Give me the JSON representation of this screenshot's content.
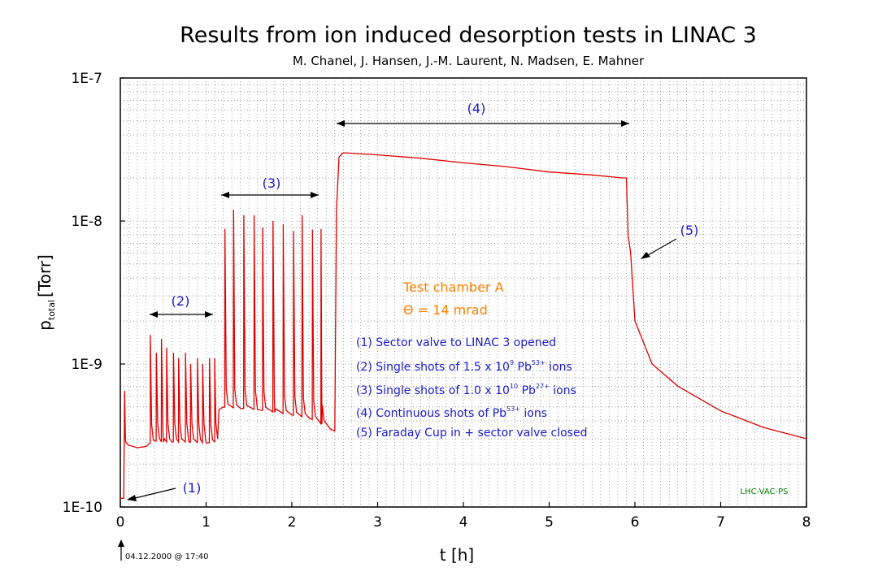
{
  "chart_data": {
    "type": "line",
    "title": "Results from ion induced desorption tests in LINAC 3",
    "subtitle": "M. Chanel, J. Hansen, J.-M. Laurent, N. Madsen, E. Mahner",
    "xlabel": "t [h]",
    "ylabel_main": "p",
    "ylabel_sub": "total",
    "ylabel_unit": "[Torr]",
    "x_scale": "linear",
    "y_scale": "log",
    "xlim": [
      0,
      8
    ],
    "ylim": [
      1e-10,
      1e-07
    ],
    "x_ticks": [
      0,
      1,
      2,
      3,
      4,
      5,
      6,
      7,
      8
    ],
    "x_tick_labels": [
      "0",
      "1",
      "2",
      "3",
      "4",
      "5",
      "6",
      "7",
      "8"
    ],
    "y_ticks": [
      1e-10,
      1e-09,
      1e-08,
      1e-07
    ],
    "y_tick_labels": [
      "1E-10",
      "1E-9",
      "1E-8",
      "1E-7"
    ],
    "grid": true,
    "line_color": "#e00000",
    "series": [
      {
        "x": [
          0.0,
          0.04,
          0.05,
          0.06,
          0.07,
          0.1,
          0.2,
          0.3,
          0.35,
          0.4,
          0.5,
          0.6,
          0.8,
          1.0,
          1.1,
          1.15,
          1.2,
          1.4,
          1.6,
          1.8,
          2.0,
          2.2,
          2.35,
          2.45,
          2.5,
          2.52,
          2.55,
          2.6,
          3.0,
          3.5,
          4.0,
          4.5,
          5.0,
          5.5,
          5.85,
          5.9,
          5.92,
          5.95,
          6.0,
          6.2,
          6.5,
          7.0,
          7.5,
          8.0
        ],
        "y": [
          1.15e-10,
          1.15e-10,
          6.5e-10,
          2.9e-10,
          2.8e-10,
          2.7e-10,
          2.6e-10,
          2.65e-10,
          2.8e-10,
          2.9e-10,
          2.85e-10,
          2.85e-10,
          2.85e-10,
          2.8e-10,
          2.85e-10,
          4.8e-10,
          5e-10,
          4.9e-10,
          4.8e-10,
          4.6e-10,
          4.4e-10,
          4.2e-10,
          3.8e-10,
          3.5e-10,
          3.4e-10,
          1.2e-08,
          2.8e-08,
          3e-08,
          2.9e-08,
          2.75e-08,
          2.55e-08,
          2.4e-08,
          2.2e-08,
          2.1e-08,
          2e-08,
          2e-08,
          8e-09,
          6e-09,
          2e-09,
          1e-09,
          7e-10,
          4.7e-10,
          3.6e-10,
          3e-10
        ]
      }
    ],
    "spike_groups": [
      {
        "x": [
          0.35,
          0.42,
          0.48,
          0.54,
          0.62,
          0.68,
          0.76,
          0.82,
          0.9,
          0.96,
          1.04,
          1.1
        ],
        "peaks": [
          1.6e-09,
          1.2e-09,
          1.5e-09,
          1.3e-09,
          1.2e-09,
          1.1e-09,
          1.2e-09,
          1e-09,
          1.1e-09,
          1e-09,
          1.1e-09,
          1.1e-09
        ]
      },
      {
        "x": [
          1.22,
          1.32,
          1.44,
          1.56,
          1.66,
          1.78,
          1.9,
          2.02,
          2.12,
          2.24,
          2.34
        ],
        "peaks": [
          8.8e-09,
          1.2e-08,
          1.1e-08,
          1.1e-08,
          9e-09,
          1e-08,
          9.5e-09,
          8.5e-09,
          1.1e-08,
          8.7e-09,
          8.8e-09
        ]
      }
    ],
    "annotations": [
      {
        "label": "(1)",
        "description": "Sector valve to LINAC 3 opened"
      },
      {
        "label": "(2)",
        "description_parts": [
          "Single shots of 1.5 x 10",
          "9",
          " Pb",
          "53+",
          " ions"
        ]
      },
      {
        "label": "(3)",
        "description_parts": [
          "Single shots of 1.0 x 10",
          "10",
          " Pb",
          "27+",
          " ions"
        ]
      },
      {
        "label": "(4)",
        "description_parts": [
          "Continuous shots of Pb",
          "53+",
          " ions"
        ]
      },
      {
        "label": "(5)",
        "description": "Faraday Cup in + sector valve closed"
      }
    ],
    "test_info": [
      "Test chamber A",
      "Θ = 14 mrad"
    ],
    "credit": "LHC-VAC-PS",
    "timestamp": "04.12.2000 @ 17:40"
  }
}
